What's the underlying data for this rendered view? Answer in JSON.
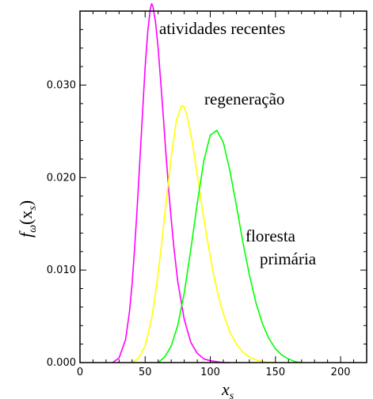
{
  "chart_data": {
    "type": "line",
    "title": "",
    "xlabel": "x",
    "xlabel_sub": "s",
    "ylabel_f": "f",
    "ylabel_sub": "ω",
    "ylabel_arg": "(x",
    "ylabel_arg_sub": "s",
    "ylabel_close": ")",
    "xlim": [
      0,
      220
    ],
    "ylim": [
      0,
      0.038
    ],
    "x_ticks": [
      0,
      50,
      100,
      150,
      200
    ],
    "x_tick_labels": [
      "0",
      "50",
      "100",
      "150",
      "200"
    ],
    "y_ticks": [
      0,
      0.01,
      0.02,
      0.03
    ],
    "y_tick_labels": [
      "0.000",
      "0.010",
      "0.020",
      "0.030"
    ],
    "grid": false,
    "series": [
      {
        "name": "atividades recentes",
        "color": "#ff00ff",
        "x": [
          25,
          30,
          35,
          38,
          40,
          42,
          44,
          46,
          48,
          50,
          52,
          54,
          55,
          56,
          58,
          60,
          62,
          64,
          66,
          68,
          70,
          72,
          75,
          80,
          85,
          90,
          95,
          100,
          105,
          110,
          115
        ],
        "y": [
          0,
          0.0005,
          0.0025,
          0.0055,
          0.0085,
          0.0125,
          0.017,
          0.022,
          0.027,
          0.032,
          0.0358,
          0.0383,
          0.0388,
          0.0385,
          0.0368,
          0.034,
          0.0303,
          0.0265,
          0.0225,
          0.0188,
          0.0155,
          0.0125,
          0.0088,
          0.0047,
          0.0022,
          0.001,
          0.0004,
          0.0002,
          0.0001,
          0,
          0
        ]
      },
      {
        "name": "regeneração",
        "color": "#ffff00",
        "x": [
          40,
          45,
          50,
          55,
          58,
          62,
          66,
          70,
          74,
          78,
          80,
          82,
          86,
          90,
          94,
          98,
          102,
          106,
          110,
          115,
          120,
          125,
          130,
          135,
          140,
          150
        ],
        "y": [
          0,
          0.0005,
          0.0018,
          0.0048,
          0.0075,
          0.012,
          0.0172,
          0.0222,
          0.0262,
          0.0278,
          0.0276,
          0.0268,
          0.024,
          0.0203,
          0.0165,
          0.013,
          0.0099,
          0.0073,
          0.0053,
          0.0033,
          0.002,
          0.0011,
          0.0006,
          0.0003,
          0.0001,
          0
        ]
      },
      {
        "name": "floresta primária",
        "color": "#00ff00",
        "x": [
          60,
          65,
          70,
          75,
          80,
          85,
          90,
          95,
          100,
          105,
          110,
          115,
          120,
          125,
          130,
          135,
          140,
          145,
          150,
          155,
          160,
          165,
          170
        ],
        "y": [
          0,
          0.0006,
          0.0018,
          0.004,
          0.0075,
          0.0122,
          0.0172,
          0.0218,
          0.0246,
          0.0251,
          0.0238,
          0.0208,
          0.017,
          0.013,
          0.0095,
          0.0065,
          0.0042,
          0.0026,
          0.0015,
          0.0008,
          0.0004,
          0.0001,
          0
        ]
      }
    ]
  },
  "annotations": {
    "recentes": "atividades recentes",
    "regeneracao": "regeneração",
    "floresta_line1": "floresta",
    "floresta_line2": "primária"
  }
}
